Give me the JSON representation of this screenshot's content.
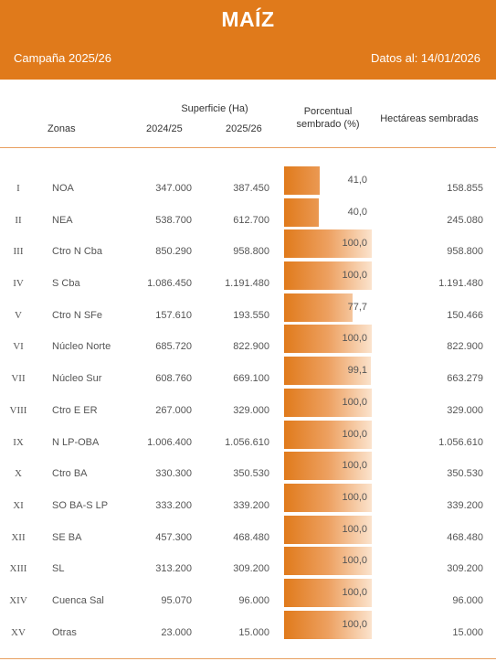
{
  "header": {
    "title": "MAÍZ",
    "campaign": "Campaña 2025/26",
    "date": "Datos al: 14/01/2026"
  },
  "columns": {
    "zonas": "Zonas",
    "superficie": "Superficie (Ha)",
    "year1": "2024/25",
    "year2": "2025/26",
    "porcentual": "Porcentual sembrado (%)",
    "hectareas": "Hectáreas sembradas"
  },
  "rows": [
    {
      "roman": "I",
      "zone": "NOA",
      "y1": "347.000",
      "y2": "387.450",
      "pct": "41,0",
      "pct_value": 41.0,
      "ha": "158.855"
    },
    {
      "roman": "II",
      "zone": "NEA",
      "y1": "538.700",
      "y2": "612.700",
      "pct": "40,0",
      "pct_value": 40.0,
      "ha": "245.080"
    },
    {
      "roman": "III",
      "zone": "Ctro N Cba",
      "y1": "850.290",
      "y2": "958.800",
      "pct": "100,0",
      "pct_value": 100.0,
      "ha": "958.800"
    },
    {
      "roman": "IV",
      "zone": "S Cba",
      "y1": "1.086.450",
      "y2": "1.191.480",
      "pct": "100,0",
      "pct_value": 100.0,
      "ha": "1.191.480"
    },
    {
      "roman": "V",
      "zone": "Ctro N SFe",
      "y1": "157.610",
      "y2": "193.550",
      "pct": "77,7",
      "pct_value": 77.7,
      "ha": "150.466"
    },
    {
      "roman": "VI",
      "zone": "Núcleo Norte",
      "y1": "685.720",
      "y2": "822.900",
      "pct": "100,0",
      "pct_value": 100.0,
      "ha": "822.900"
    },
    {
      "roman": "VII",
      "zone": "Núcleo Sur",
      "y1": "608.760",
      "y2": "669.100",
      "pct": "99,1",
      "pct_value": 99.1,
      "ha": "663.279"
    },
    {
      "roman": "VIII",
      "zone": "Ctro E ER",
      "y1": "267.000",
      "y2": "329.000",
      "pct": "100,0",
      "pct_value": 100.0,
      "ha": "329.000"
    },
    {
      "roman": "IX",
      "zone": "N LP-OBA",
      "y1": "1.006.400",
      "y2": "1.056.610",
      "pct": "100,0",
      "pct_value": 100.0,
      "ha": "1.056.610"
    },
    {
      "roman": "X",
      "zone": "Ctro BA",
      "y1": "330.300",
      "y2": "350.530",
      "pct": "100,0",
      "pct_value": 100.0,
      "ha": "350.530"
    },
    {
      "roman": "XI",
      "zone": "SO BA-S LP",
      "y1": "333.200",
      "y2": "339.200",
      "pct": "100,0",
      "pct_value": 100.0,
      "ha": "339.200"
    },
    {
      "roman": "XII",
      "zone": "SE BA",
      "y1": "457.300",
      "y2": "468.480",
      "pct": "100,0",
      "pct_value": 100.0,
      "ha": "468.480"
    },
    {
      "roman": "XIII",
      "zone": "SL",
      "y1": "313.200",
      "y2": "309.200",
      "pct": "100,0",
      "pct_value": 100.0,
      "ha": "309.200"
    },
    {
      "roman": "XIV",
      "zone": "Cuenca Sal",
      "y1": "95.070",
      "y2": "96.000",
      "pct": "100,0",
      "pct_value": 100.0,
      "ha": "96.000"
    },
    {
      "roman": "XV",
      "zone": "Otras",
      "y1": "23.000",
      "y2": "15.000",
      "pct": "100,0",
      "pct_value": 100.0,
      "ha": "15.000"
    }
  ],
  "colors": {
    "accent": "#e07a1b",
    "bar_light": "#fbe3cd",
    "text": "#555555",
    "rule": "#e8a060"
  }
}
